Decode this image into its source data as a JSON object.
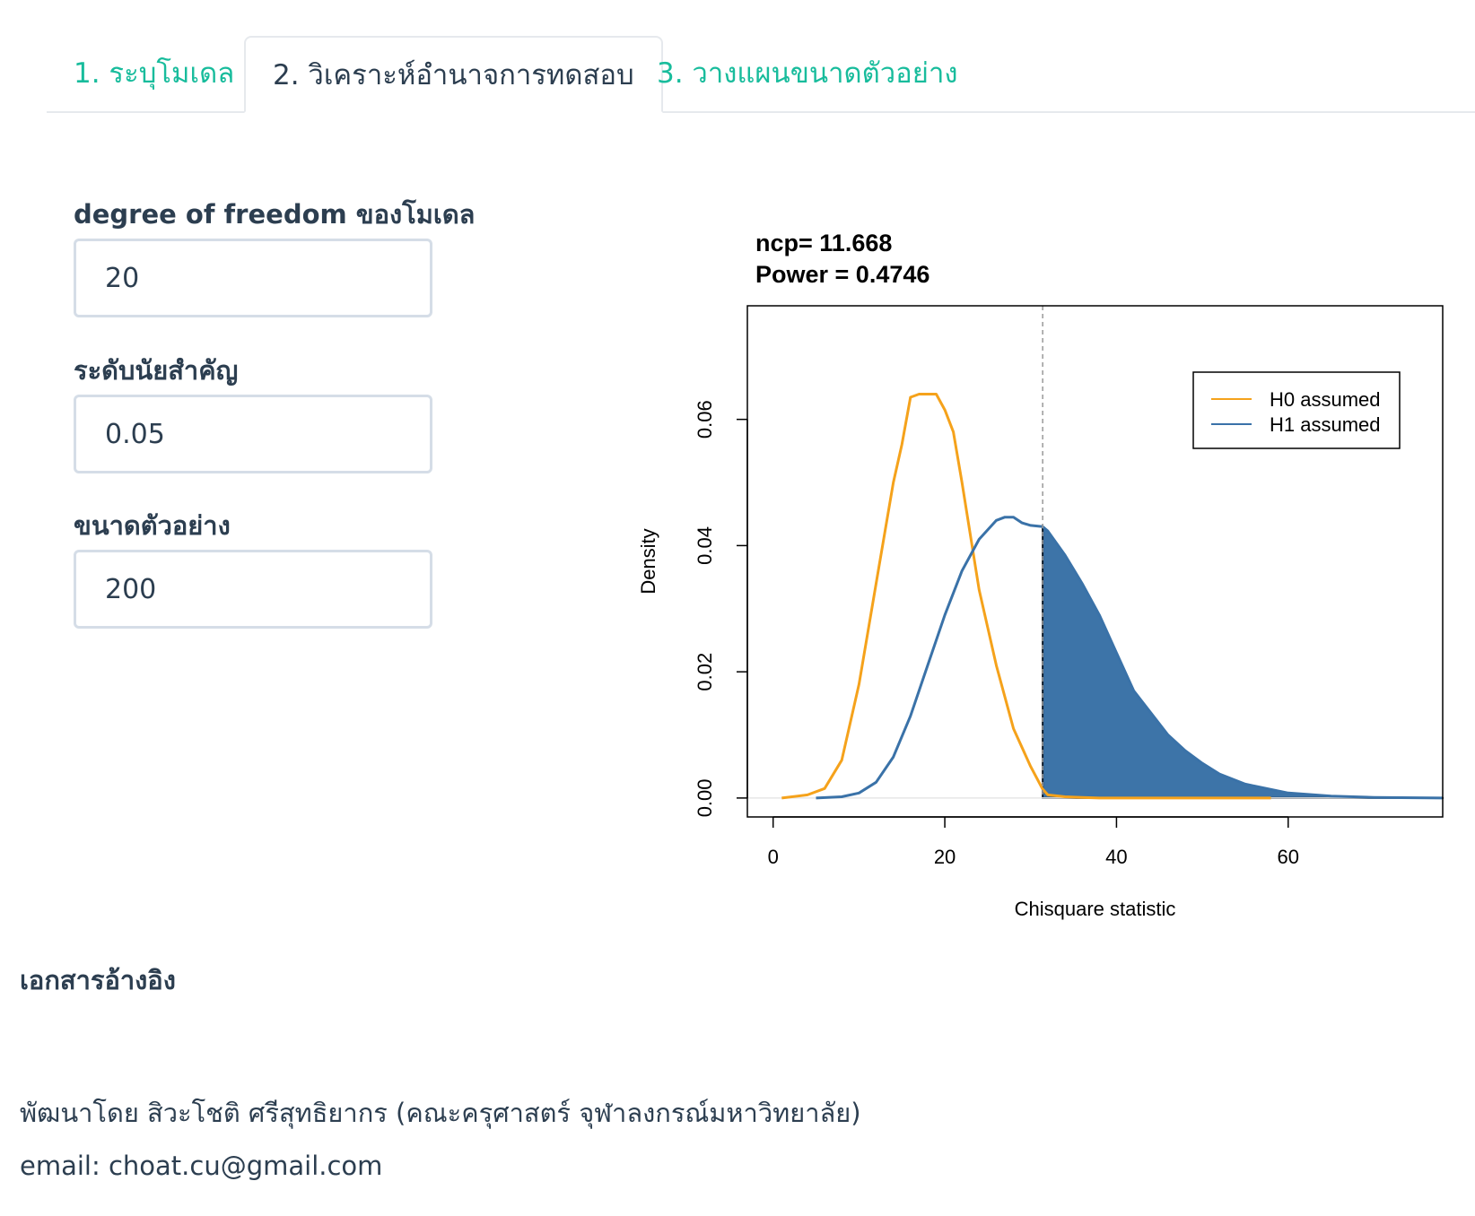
{
  "tabs": [
    {
      "label": "1. ระบุโมเดล",
      "active": false
    },
    {
      "label": "2. วิเคราะห์อำนาจการทดสอบ",
      "active": true
    },
    {
      "label": "3. วางแผนขนาดตัวอย่าง",
      "active": false
    }
  ],
  "form": {
    "df_label": "degree of freedom ของโมเดล",
    "df_value": "20",
    "alpha_label": "ระดับนัยสำคัญ",
    "alpha_value": "0.05",
    "n_label": "ขนาดตัวอย่าง",
    "n_value": "200"
  },
  "chart_data": {
    "type": "area",
    "title_lines": [
      "ncp= 11.668",
      "Power =  0.4746"
    ],
    "xlabel": "Chisquare statistic",
    "ylabel": "Density",
    "xlim": [
      -3,
      78
    ],
    "ylim": [
      -0.003,
      0.078
    ],
    "xticks": [
      0,
      20,
      40,
      60
    ],
    "yticks": [
      0.0,
      0.02,
      0.04,
      0.06
    ],
    "ytick_labels": [
      "0.00",
      "0.02",
      "0.04",
      "0.06"
    ],
    "critical_value": 31.4,
    "grid": false,
    "legend_position": "top-right",
    "series": [
      {
        "name": "H0 assumed",
        "color": "#f5a21b",
        "x": [
          1,
          4,
          6,
          8,
          10,
          12,
          14,
          15,
          16,
          17,
          18,
          19,
          20,
          21,
          22,
          24,
          26,
          28,
          30,
          31.4,
          32,
          34,
          36,
          38,
          40,
          42,
          44,
          46,
          50,
          55,
          58
        ],
        "y": [
          0.0,
          0.0005,
          0.0015,
          0.006,
          0.018,
          0.034,
          0.05,
          0.056,
          0.0635,
          0.064,
          0.064,
          0.064,
          0.0615,
          0.058,
          0.05,
          0.033,
          0.021,
          0.011,
          0.005,
          0.0014,
          0.0005,
          0.0002,
          0.0001,
          0.0,
          0.0,
          0.0,
          0.0,
          0.0,
          0.0,
          0.0,
          0.0
        ]
      },
      {
        "name": "H1 assumed",
        "color": "#3a72a8",
        "x": [
          5,
          8,
          10,
          12,
          14,
          16,
          18,
          20,
          22,
          24,
          26,
          27,
          28,
          29,
          30,
          31.4,
          32,
          34,
          36,
          38,
          40,
          42,
          44,
          46,
          48,
          50,
          52,
          55,
          60,
          65,
          70,
          78
        ],
        "y": [
          0.0,
          0.0002,
          0.0008,
          0.0025,
          0.0065,
          0.013,
          0.021,
          0.029,
          0.036,
          0.041,
          0.044,
          0.0445,
          0.0445,
          0.0436,
          0.0432,
          0.043,
          0.0423,
          0.0385,
          0.034,
          0.029,
          0.023,
          0.017,
          0.0135,
          0.01,
          0.0075,
          0.0055,
          0.0038,
          0.0022,
          0.0008,
          0.0003,
          0.0001,
          0.0
        ]
      }
    ],
    "shaded_region": {
      "series": "H1 assumed",
      "from": 31.4,
      "color": "#3d74a8"
    }
  },
  "references": {
    "heading": "เอกสารอ้างอิง"
  },
  "footer": {
    "developer": "พัฒนาโดย สิวะโชติ ศรีสุทธิยากร (คณะครุศาสตร์ จุฬาลงกรณ์มหาวิทยาลัย)",
    "email": "email: choat.cu@gmail.com"
  }
}
